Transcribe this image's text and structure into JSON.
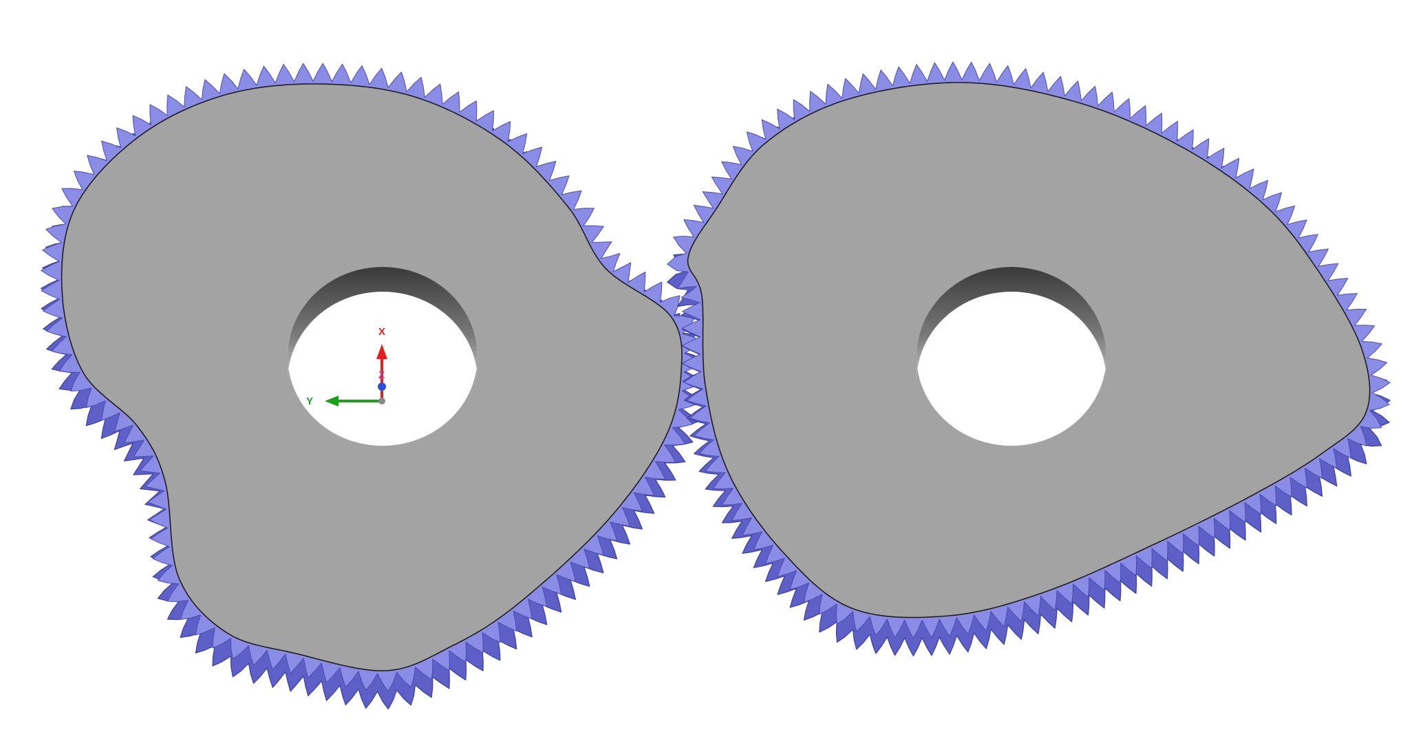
{
  "scene": {
    "background": "#ffffff",
    "parts": [
      {
        "name": "left-noncircular-gear",
        "teeth_color": "#8a8ce6",
        "teeth_side_color": "#5e60c8",
        "face_color": "#a3a3a3",
        "bore": "circular"
      },
      {
        "name": "right-noncircular-gear",
        "teeth_color": "#8a8ce6",
        "teeth_side_color": "#5e60c8",
        "face_color": "#a3a3a3",
        "bore": "circular"
      }
    ],
    "triad": {
      "x_label": "X",
      "y_label": "Y",
      "z_label": "Z",
      "x_color": "#e0201e",
      "y_color": "#1ea01e",
      "z_color": "#2a4fd6"
    }
  }
}
